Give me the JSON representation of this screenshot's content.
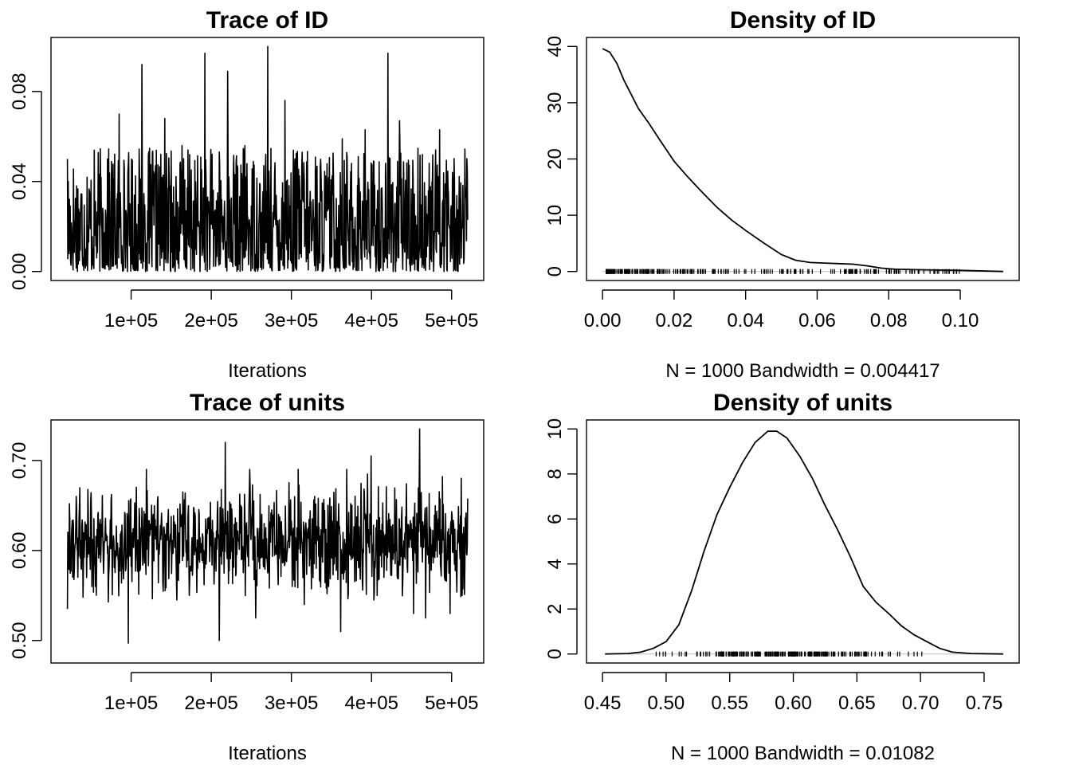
{
  "chart_data": [
    {
      "type": "line",
      "title": "Trace of ID",
      "xlabel": "Iterations",
      "ylabel": "",
      "xlim": [
        20000,
        520000
      ],
      "ylim": [
        0,
        0.1
      ],
      "xticks": [
        "1e+05",
        "2e+05",
        "3e+05",
        "4e+05",
        "5e+05"
      ],
      "xtick_values": [
        100000,
        200000,
        300000,
        400000,
        500000
      ],
      "yticks": [
        "0.00",
        "0.04",
        "0.08"
      ],
      "ytick_values": [
        0,
        0.04,
        0.08
      ],
      "series": [
        {
          "n_samples": 1000,
          "x_start": 20500,
          "x_step": 500,
          "values_sample": [
            0.05,
            0.004,
            0.026,
            0.012,
            0.042,
            0.009,
            0.019,
            0.05,
            0.032,
            0.07,
            0.022,
            0.03,
            0.016,
            0.092,
            0.027,
            0.045,
            0.018,
            0.068,
            0.012,
            0.024,
            0.056,
            0.015,
            0.04,
            0.02,
            0.097,
            0.06,
            0.031,
            0.019,
            0.089,
            0.022,
            0.014,
            0.056,
            0.037,
            0.064,
            0.018,
            0.1,
            0.046,
            0.023,
            0.076,
            0.018,
            0.042,
            0.053,
            0.015,
            0.071,
            0.028,
            0.024,
            0.085,
            0.025,
            0.059,
            0.02,
            0.086,
            0.035,
            0.063,
            0.021,
            0.08,
            0.028,
            0.097,
            0.038,
            0.067,
            0.03,
            0.062,
            0.022,
            0.052,
            0.018,
            0.082,
            0.063,
            0.039,
            0.006,
            0.088,
            0.023
          ]
        }
      ]
    },
    {
      "type": "line",
      "title": "Density of ID",
      "xlabel": "N = 1000   Bandwidth = 0.004417",
      "ylabel": "",
      "xlim": [
        0,
        0.112
      ],
      "ylim": [
        0,
        40
      ],
      "xticks": [
        "0.00",
        "0.02",
        "0.04",
        "0.06",
        "0.08",
        "0.10"
      ],
      "xtick_values": [
        0,
        0.02,
        0.04,
        0.06,
        0.08,
        0.1
      ],
      "yticks": [
        "0",
        "10",
        "20",
        "30",
        "40"
      ],
      "ytick_values": [
        0,
        10,
        20,
        30,
        40
      ],
      "series": [
        {
          "x": [
            0.0,
            0.002,
            0.004,
            0.006,
            0.008,
            0.01,
            0.013,
            0.016,
            0.02,
            0.024,
            0.028,
            0.032,
            0.036,
            0.04,
            0.045,
            0.05,
            0.054,
            0.058,
            0.062,
            0.066,
            0.07,
            0.074,
            0.078,
            0.082,
            0.09,
            0.1,
            0.112
          ],
          "y": [
            39.6,
            39.0,
            37.0,
            34.0,
            31.5,
            29.0,
            26.3,
            23.4,
            19.6,
            16.7,
            14.0,
            11.4,
            9.2,
            7.3,
            5.1,
            3.0,
            2.0,
            1.6,
            1.5,
            1.4,
            1.3,
            1.0,
            0.6,
            0.4,
            0.3,
            0.2,
            0.0
          ]
        }
      ],
      "rug_range": [
        0.001,
        0.1
      ]
    },
    {
      "type": "line",
      "title": "Trace of units",
      "xlabel": "Iterations",
      "ylabel": "",
      "xlim": [
        20000,
        520000
      ],
      "ylim": [
        0.485,
        0.735
      ],
      "xticks": [
        "1e+05",
        "2e+05",
        "3e+05",
        "4e+05",
        "5e+05"
      ],
      "xtick_values": [
        100000,
        200000,
        300000,
        400000,
        500000
      ],
      "yticks": [
        "0.50",
        "0.60",
        "0.70"
      ],
      "ytick_values": [
        0.5,
        0.6,
        0.7
      ],
      "series": [
        {
          "n_samples": 1000,
          "x_start": 20500,
          "x_step": 500,
          "values_sample": [
            0.535,
            0.665,
            0.515,
            0.61,
            0.56,
            0.64,
            0.59,
            0.685,
            0.555,
            0.6,
            0.497,
            0.625,
            0.58,
            0.69,
            0.485,
            0.65,
            0.57,
            0.61,
            0.545,
            0.665,
            0.595,
            0.56,
            0.7,
            0.53,
            0.62,
            0.5,
            0.72,
            0.545,
            0.65,
            0.58,
            0.69,
            0.525,
            0.64,
            0.575,
            0.7,
            0.495,
            0.615,
            0.56,
            0.69,
            0.54,
            0.72,
            0.488,
            0.67,
            0.56,
            0.6,
            0.51,
            0.69,
            0.575,
            0.64,
            0.515,
            0.705,
            0.55,
            0.61,
            0.5,
            0.65,
            0.56,
            0.69,
            0.53,
            0.735,
            0.525,
            0.655,
            0.56,
            0.62,
            0.53,
            0.6,
            0.55
          ]
        }
      ]
    },
    {
      "type": "line",
      "title": "Density of units",
      "xlabel": "N = 1000   Bandwidth = 0.01082",
      "ylabel": "",
      "xlim": [
        0.45,
        0.765
      ],
      "ylim": [
        0,
        10
      ],
      "xticks": [
        "0.45",
        "0.50",
        "0.55",
        "0.60",
        "0.65",
        "0.70",
        "0.75"
      ],
      "xtick_values": [
        0.45,
        0.5,
        0.55,
        0.6,
        0.65,
        0.7,
        0.75
      ],
      "yticks": [
        "0",
        "2",
        "4",
        "6",
        "8",
        "10"
      ],
      "ytick_values": [
        0,
        2,
        4,
        6,
        8,
        10
      ],
      "series": [
        {
          "x": [
            0.452,
            0.47,
            0.48,
            0.49,
            0.5,
            0.51,
            0.52,
            0.53,
            0.54,
            0.55,
            0.56,
            0.57,
            0.58,
            0.587,
            0.595,
            0.605,
            0.615,
            0.625,
            0.635,
            0.645,
            0.655,
            0.665,
            0.675,
            0.685,
            0.695,
            0.705,
            0.715,
            0.725,
            0.74,
            0.765
          ],
          "y": [
            0.0,
            0.02,
            0.08,
            0.25,
            0.55,
            1.3,
            2.8,
            4.6,
            6.2,
            7.4,
            8.5,
            9.4,
            9.9,
            9.9,
            9.6,
            8.8,
            7.8,
            6.6,
            5.5,
            4.3,
            3.0,
            2.3,
            1.8,
            1.25,
            0.85,
            0.55,
            0.25,
            0.08,
            0.02,
            0.0
          ]
        }
      ],
      "rug_range": [
        0.485,
        0.72
      ]
    }
  ]
}
